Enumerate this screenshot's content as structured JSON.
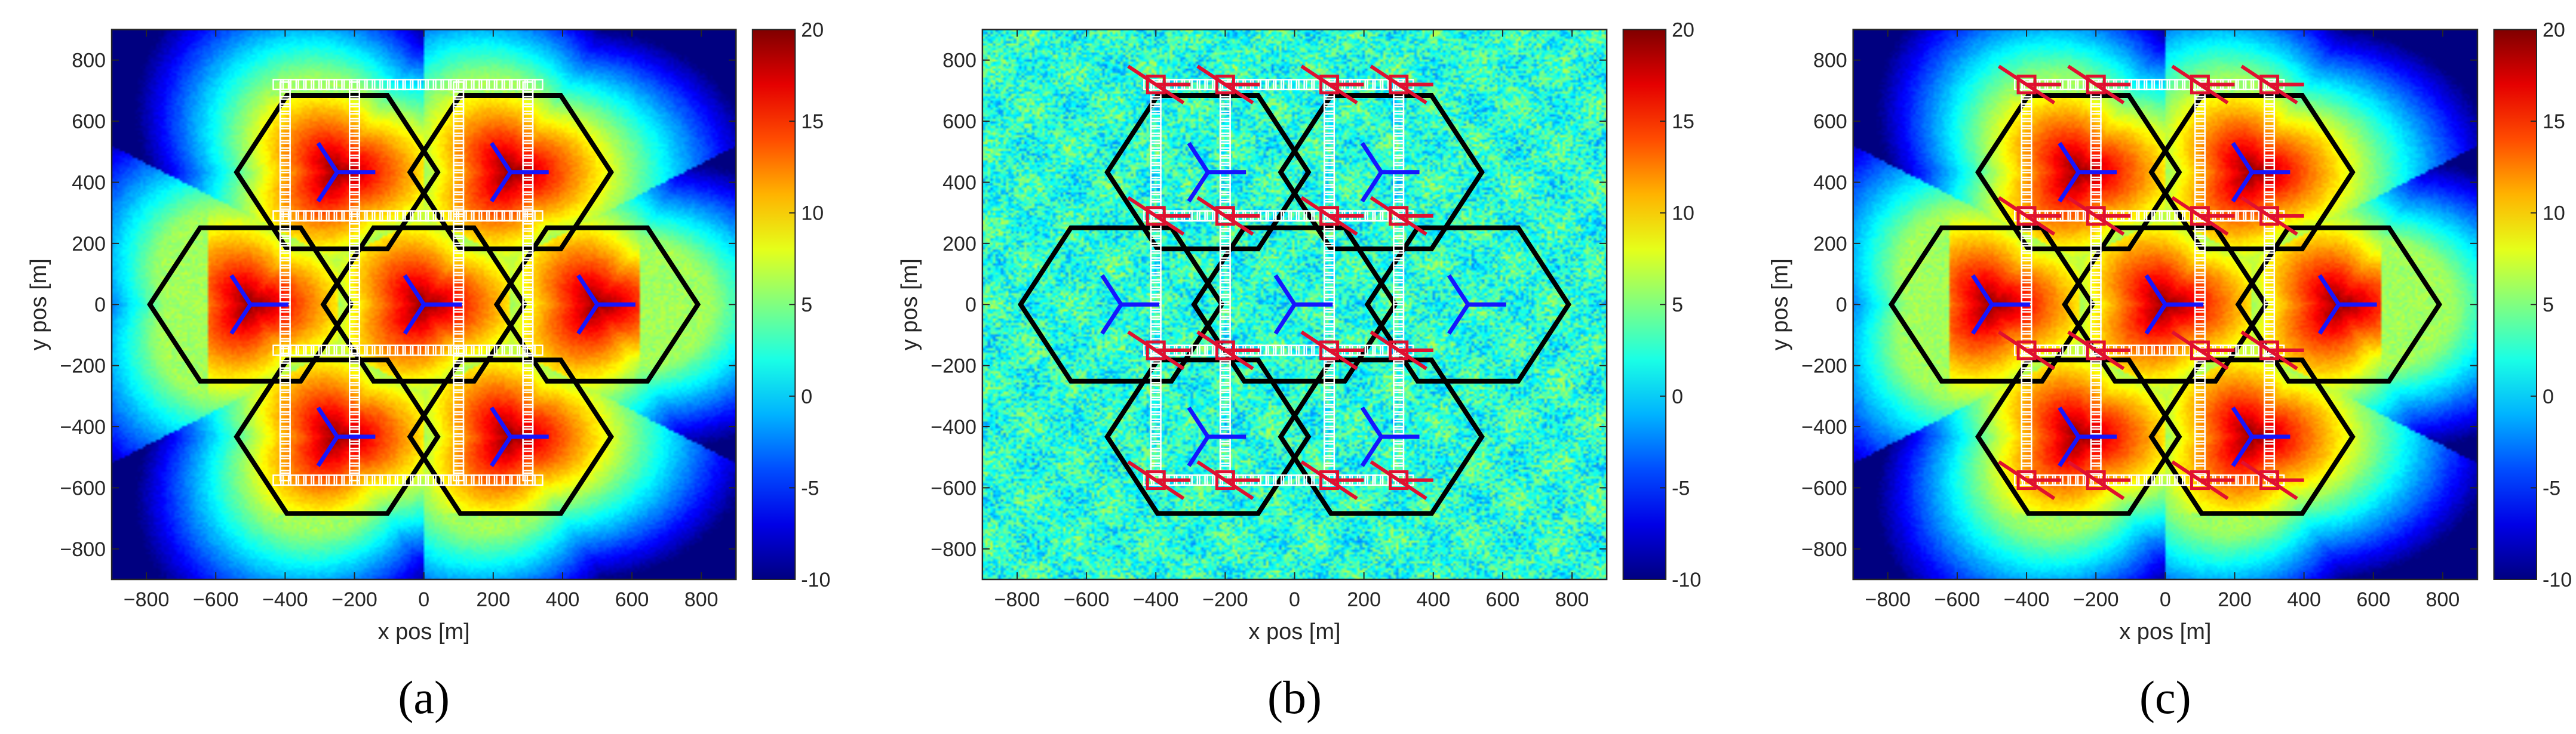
{
  "chart_data": [
    {
      "type": "heatmap",
      "panel_label": "(a)",
      "xlabel": "x pos [m]",
      "ylabel": "y pos [m]",
      "xlim": [
        -900,
        900
      ],
      "ylim": [
        -900,
        900
      ],
      "xticks": [
        -800,
        -600,
        -400,
        -200,
        0,
        200,
        400,
        600,
        800
      ],
      "yticks": [
        -800,
        -600,
        -400,
        -200,
        0,
        200,
        400,
        600,
        800
      ],
      "colorbar": {
        "min": -10,
        "max": 20,
        "ticks": [
          20,
          15,
          10,
          5,
          0,
          -5,
          -10
        ],
        "colormap": "jet"
      },
      "style": "smooth",
      "sites": [
        [
          -250,
          433
        ],
        [
          250,
          433
        ],
        [
          -500,
          0
        ],
        [
          0,
          0
        ],
        [
          500,
          0
        ],
        [
          -250,
          -433
        ],
        [
          250,
          -433
        ]
      ],
      "show_red_links": false
    },
    {
      "type": "heatmap",
      "panel_label": "(b)",
      "xlabel": "x pos [m]",
      "ylabel": "y pos [m]",
      "xlim": [
        -900,
        900
      ],
      "ylim": [
        -900,
        900
      ],
      "xticks": [
        -800,
        -600,
        -400,
        -200,
        0,
        200,
        400,
        600,
        800
      ],
      "yticks": [
        -800,
        -600,
        -400,
        -200,
        0,
        200,
        400,
        600,
        800
      ],
      "colorbar": {
        "min": -10,
        "max": 20,
        "ticks": [
          20,
          15,
          10,
          5,
          0,
          -5,
          -10
        ],
        "colormap": "jet"
      },
      "style": "noisy",
      "sites": [
        [
          -250,
          433
        ],
        [
          250,
          433
        ],
        [
          -500,
          0
        ],
        [
          0,
          0
        ],
        [
          500,
          0
        ],
        [
          -250,
          -433
        ],
        [
          250,
          -433
        ]
      ],
      "show_red_links": true
    },
    {
      "type": "heatmap",
      "panel_label": "(c)",
      "xlabel": "x pos [m]",
      "ylabel": "y pos [m]",
      "xlim": [
        -900,
        900
      ],
      "ylim": [
        -900,
        900
      ],
      "xticks": [
        -800,
        -600,
        -400,
        -200,
        0,
        200,
        400,
        600,
        800
      ],
      "yticks": [
        -800,
        -600,
        -400,
        -200,
        0,
        200,
        400,
        600,
        800
      ],
      "colorbar": {
        "min": -10,
        "max": 20,
        "ticks": [
          20,
          15,
          10,
          5,
          0,
          -5,
          -10
        ],
        "colormap": "jet"
      },
      "style": "smooth",
      "sites": [
        [
          -250,
          433
        ],
        [
          250,
          433
        ],
        [
          -500,
          0
        ],
        [
          0,
          0
        ],
        [
          500,
          0
        ],
        [
          -250,
          -433
        ],
        [
          250,
          -433
        ]
      ],
      "show_red_links": true
    }
  ]
}
